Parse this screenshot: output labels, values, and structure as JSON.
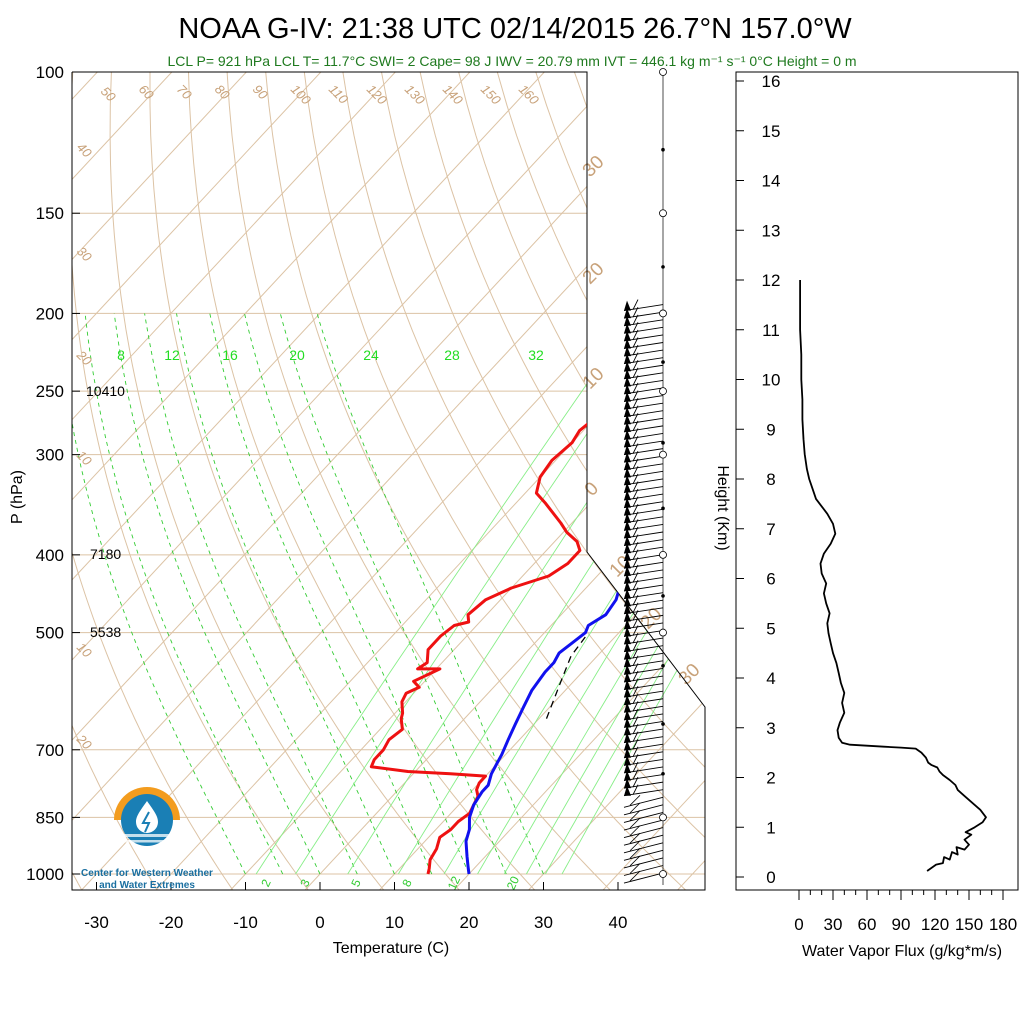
{
  "chart_data": [
    {
      "type": "line",
      "title": "NOAA G-IV: 21:38 UTC 02/14/2015  26.7°N 157.0°W",
      "subtitle": "LCL P= 921 hPa  LCL T= 11.7°C  SWI= 2  Cape= 98 J  IWV = 20.79 mm  IVT = 446.1 kg m⁻¹ s⁻¹  0°C Height = 0 m",
      "xlabel": "Temperature (C)",
      "ylabel": "P (hPa)",
      "x_ticks": [
        -30,
        -20,
        -10,
        0,
        10,
        20,
        30,
        40
      ],
      "y_ticks": [
        100,
        150,
        200,
        250,
        300,
        400,
        500,
        700,
        850,
        1000
      ],
      "y_scale": "log",
      "ylim": [
        1000,
        100
      ],
      "height_labels": [
        {
          "p": 250,
          "text": "10410"
        },
        {
          "p": 400,
          "text": "7180"
        },
        {
          "p": 500,
          "text": "5538"
        }
      ],
      "mixing_ratio_labels_top": [
        "8",
        "12",
        "16",
        "20",
        "24",
        "28",
        "32"
      ],
      "mixing_ratio_labels_bottom": [
        "2",
        "3",
        "5",
        "8",
        "12",
        "20"
      ],
      "dry_adiabat_labels": [
        "50",
        "60",
        "70",
        "80",
        "90",
        "100",
        "110",
        "120",
        "130",
        "140",
        "150",
        "160"
      ],
      "isotherm_left_labels": [
        "40",
        "30",
        "20",
        "10",
        "10",
        "20"
      ],
      "isotherm_right_labels": [
        "30",
        "20",
        "10",
        "0",
        "10",
        "20",
        "30"
      ],
      "series": [
        {
          "color": "#ee1111",
          "points": [
            [
              14.5,
              1000
            ],
            [
              14.0,
              985
            ],
            [
              13.0,
              960
            ],
            [
              12.5,
              930
            ],
            [
              11.5,
              900
            ],
            [
              12.0,
              880
            ],
            [
              12.0,
              860
            ],
            [
              12.5,
              840
            ],
            [
              12.0,
              820
            ],
            [
              11.5,
              800
            ],
            [
              10.5,
              785
            ],
            [
              10.0,
              770
            ],
            [
              10.0,
              755
            ],
            [
              5.0,
              750
            ],
            [
              -1.0,
              745
            ],
            [
              -6.5,
              735
            ],
            [
              -7.0,
              720
            ],
            [
              -7.0,
              700
            ],
            [
              -7.5,
              680
            ],
            [
              -7.0,
              660
            ],
            [
              -8.5,
              640
            ],
            [
              -9.0,
              630
            ],
            [
              -10.5,
              610
            ],
            [
              -11.0,
              595
            ],
            [
              -10.0,
              585
            ],
            [
              -11.5,
              575
            ],
            [
              -10.0,
              560
            ],
            [
              -9.5,
              555
            ],
            [
              -12.5,
              555
            ],
            [
              -12.0,
              545
            ],
            [
              -13.5,
              525
            ],
            [
              -13.5,
              505
            ],
            [
              -13.0,
              490
            ],
            [
              -11.5,
              485
            ],
            [
              -12.5,
              475
            ],
            [
              -12.0,
              455
            ],
            [
              -10.0,
              440
            ],
            [
              -6.5,
              425
            ],
            [
              -5.5,
              410
            ],
            [
              -5.5,
              395
            ],
            [
              -7.0,
              385
            ],
            [
              -9.5,
              375
            ],
            [
              -11.5,
              365
            ],
            [
              -16.0,
              345
            ],
            [
              -18.5,
              335
            ],
            [
              -20.0,
              320
            ],
            [
              -20.5,
              305
            ],
            [
              -20.0,
              290
            ],
            [
              -20.5,
              280
            ],
            [
              -20.0,
              270
            ],
            [
              -19.5,
              250
            ],
            [
              -19.5,
              240
            ],
            [
              -18.5,
              230
            ],
            [
              -17.5,
              220
            ],
            [
              -16.0,
              212
            ],
            [
              -15.0,
              205
            ],
            [
              -14.5,
              198
            ],
            [
              -13.0,
              192
            ]
          ]
        },
        {
          "color": "#1111ee",
          "points": [
            [
              20.0,
              1000
            ],
            [
              19.0,
              980
            ],
            [
              17.5,
              950
            ],
            [
              15.5,
              910
            ],
            [
              14.5,
              880
            ],
            [
              13.0,
              850
            ],
            [
              12.0,
              820
            ],
            [
              11.5,
              790
            ],
            [
              11.5,
              775
            ],
            [
              10.5,
              750
            ],
            [
              10.0,
              730
            ],
            [
              9.5,
              710
            ],
            [
              9.0,
              695
            ],
            [
              8.5,
              680
            ],
            [
              7.5,
              650
            ],
            [
              6.5,
              620
            ],
            [
              5.5,
              590
            ],
            [
              5.0,
              560
            ],
            [
              5.0,
              545
            ],
            [
              4.5,
              530
            ],
            [
              5.0,
              515
            ],
            [
              5.5,
              500
            ],
            [
              5.0,
              490
            ],
            [
              6.0,
              475
            ],
            [
              5.5,
              455
            ],
            [
              4.5,
              440
            ],
            [
              3.5,
              420
            ],
            [
              3.5,
              405
            ],
            [
              3.0,
              395
            ],
            [
              2.0,
              380
            ],
            [
              1.0,
              365
            ],
            [
              0.5,
              355
            ],
            [
              -1.0,
              340
            ],
            [
              -1.5,
              320
            ],
            [
              -1.5,
              300
            ],
            [
              -1.0,
              285
            ],
            [
              -0.5,
              275
            ],
            [
              -0.5,
              260
            ],
            [
              -0.5,
              250
            ],
            [
              -0.5,
              240
            ],
            [
              1.0,
              225
            ],
            [
              2.5,
              215
            ],
            [
              4.0,
              205
            ],
            [
              5.5,
              198
            ],
            [
              6.5,
              192
            ]
          ]
        },
        {
          "color": "#000000",
          "dashed": true,
          "points": [
            [
              11.0,
              640
            ],
            [
              8.5,
              580
            ],
            [
              6.5,
              535
            ],
            [
              6.0,
              505
            ]
          ]
        }
      ]
    },
    {
      "type": "line",
      "xlabel": "Water Vapor Flux (g/kg*m/s)",
      "ylabel": "Height (Km)",
      "x_ticks": [
        0,
        30,
        60,
        90,
        120,
        150,
        180
      ],
      "y_ticks": [
        0,
        1,
        2,
        3,
        4,
        5,
        6,
        7,
        8,
        9,
        10,
        11,
        12,
        13,
        14,
        15,
        16
      ],
      "xlim": [
        0,
        180
      ],
      "ylim": [
        0,
        16.3
      ],
      "series": [
        {
          "color": "#000000",
          "points": [
            [
              113,
              0.12
            ],
            [
              121,
              0.25
            ],
            [
              127,
              0.28
            ],
            [
              128,
              0.4
            ],
            [
              133,
              0.35
            ],
            [
              135,
              0.5
            ],
            [
              140,
              0.45
            ],
            [
              139,
              0.6
            ],
            [
              146,
              0.55
            ],
            [
              150,
              0.65
            ],
            [
              146,
              0.75
            ],
            [
              152,
              0.85
            ],
            [
              147,
              0.9
            ],
            [
              155,
              1.0
            ],
            [
              162,
              1.1
            ],
            [
              165,
              1.2
            ],
            [
              160,
              1.35
            ],
            [
              155,
              1.45
            ],
            [
              150,
              1.55
            ],
            [
              145,
              1.65
            ],
            [
              140,
              1.75
            ],
            [
              138,
              1.85
            ],
            [
              133,
              1.95
            ],
            [
              130,
              2.0
            ],
            [
              127,
              2.05
            ],
            [
              124,
              2.12
            ],
            [
              122,
              2.2
            ],
            [
              117,
              2.25
            ],
            [
              114,
              2.3
            ],
            [
              112,
              2.4
            ],
            [
              108,
              2.5
            ],
            [
              103,
              2.58
            ],
            [
              90,
              2.6
            ],
            [
              75,
              2.62
            ],
            [
              60,
              2.64
            ],
            [
              45,
              2.66
            ],
            [
              38,
              2.7
            ],
            [
              35,
              2.8
            ],
            [
              34,
              2.95
            ],
            [
              36,
              3.1
            ],
            [
              40,
              3.3
            ],
            [
              38,
              3.5
            ],
            [
              40,
              3.7
            ],
            [
              37,
              3.9
            ],
            [
              35,
              4.1
            ],
            [
              33,
              4.3
            ],
            [
              30,
              4.5
            ],
            [
              28,
              4.7
            ],
            [
              26,
              4.9
            ],
            [
              25,
              5.1
            ],
            [
              27,
              5.3
            ],
            [
              24,
              5.5
            ],
            [
              22,
              5.7
            ],
            [
              24,
              5.9
            ],
            [
              20,
              6.1
            ],
            [
              19,
              6.3
            ],
            [
              22,
              6.5
            ],
            [
              28,
              6.7
            ],
            [
              32,
              6.9
            ],
            [
              30,
              7.1
            ],
            [
              25,
              7.3
            ],
            [
              20,
              7.45
            ],
            [
              15,
              7.6
            ],
            [
              12,
              7.8
            ],
            [
              9,
              8.0
            ],
            [
              7,
              8.2
            ],
            [
              5,
              8.5
            ],
            [
              4,
              8.8
            ],
            [
              3,
              9.2
            ],
            [
              3,
              9.6
            ],
            [
              2,
              10.0
            ],
            [
              2,
              10.5
            ],
            [
              1,
              11.0
            ],
            [
              1,
              11.5
            ],
            [
              1,
              12.0
            ]
          ]
        }
      ]
    }
  ],
  "logo": {
    "line1": "Center for Western Weather",
    "line2": "and Water Extremes"
  }
}
